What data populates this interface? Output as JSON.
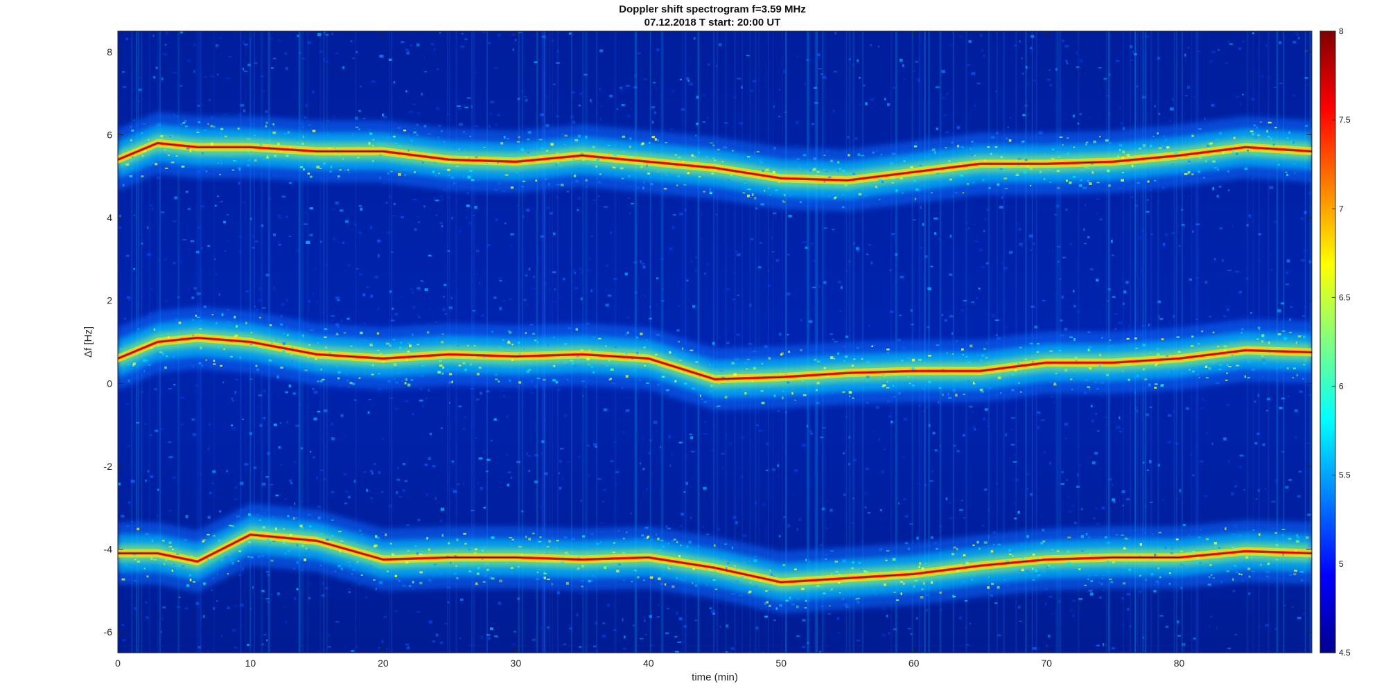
{
  "chart_data": {
    "type": "heatmap",
    "title": "Doppler shift spectrogram f=3.59 MHz",
    "subtitle": "07.12.2018   T start: 20:00 UT",
    "xlabel": "time (min)",
    "ylabel": "Δf [Hz]",
    "xlim": [
      0,
      90
    ],
    "ylim": [
      -6.5,
      8.5
    ],
    "x_ticks": [
      0,
      10,
      20,
      30,
      40,
      50,
      60,
      70,
      80
    ],
    "y_ticks": [
      -6,
      -4,
      -2,
      0,
      2,
      4,
      6,
      8
    ],
    "x_tick_labels": [
      "0",
      "10",
      "20",
      "30",
      "40",
      "50",
      "60",
      "70",
      "80"
    ],
    "y_tick_labels": [
      "-6",
      "-4",
      "-2",
      "0",
      "2",
      "4",
      "6",
      "8"
    ],
    "colorbar": {
      "range": [
        4.5,
        8
      ],
      "ticks": [
        4.5,
        5,
        5.5,
        6,
        6.5,
        7,
        7.5,
        8
      ],
      "tick_labels": [
        "4.5",
        "5",
        "5.5",
        "6",
        "6.5",
        "7",
        "7.5",
        "8"
      ],
      "colormap": "jet"
    },
    "series": [
      {
        "x": [
          0,
          3,
          6,
          10,
          15,
          20,
          25,
          30,
          35,
          40,
          45,
          50,
          55,
          60,
          65,
          70,
          75,
          80,
          85,
          90
        ],
        "y": [
          5.4,
          5.8,
          5.7,
          5.7,
          5.6,
          5.6,
          5.4,
          5.35,
          5.5,
          5.35,
          5.2,
          4.95,
          4.9,
          5.1,
          5.3,
          5.3,
          5.35,
          5.5,
          5.7,
          5.6
        ]
      },
      {
        "x": [
          0,
          3,
          6,
          10,
          15,
          20,
          25,
          30,
          35,
          40,
          45,
          50,
          55,
          60,
          65,
          70,
          75,
          80,
          85,
          90
        ],
        "y": [
          0.6,
          1.0,
          1.1,
          1.0,
          0.7,
          0.6,
          0.7,
          0.65,
          0.7,
          0.6,
          0.1,
          0.15,
          0.25,
          0.3,
          0.3,
          0.5,
          0.5,
          0.6,
          0.8,
          0.75
        ]
      },
      {
        "x": [
          0,
          3,
          6,
          10,
          15,
          20,
          25,
          30,
          35,
          40,
          45,
          50,
          55,
          60,
          65,
          70,
          75,
          80,
          85,
          90
        ],
        "y": [
          -4.1,
          -4.1,
          -4.3,
          -3.65,
          -3.8,
          -4.25,
          -4.2,
          -4.2,
          -4.25,
          -4.2,
          -4.45,
          -4.8,
          -4.7,
          -4.6,
          -4.4,
          -4.25,
          -4.2,
          -4.2,
          -4.05,
          -4.1
        ]
      }
    ]
  }
}
